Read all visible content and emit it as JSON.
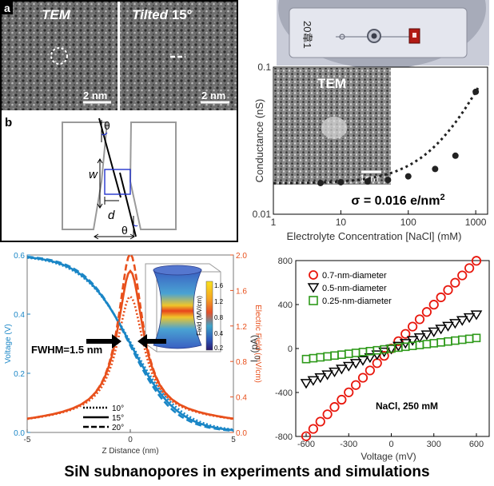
{
  "figure_title": "SiN subnanopores in experiments and simulations",
  "panel_a": {
    "label": "a",
    "left_title": "TEM",
    "right_title_italic": "Tilted",
    "right_title_rest": " 15°",
    "scale_left": "2 nm",
    "scale_right": "2 nm"
  },
  "panel_b": {
    "label": "b",
    "theta_top": "θ",
    "theta_bottom": "θ",
    "w": "w",
    "d": "d"
  },
  "inset_tem": "TEM",
  "inset_scale": "1nm",
  "colors": {
    "voltage": "#1a86c6",
    "efield": "#e8501c",
    "red_marker": "#e8160c",
    "black_marker": "#000000",
    "green_marker": "#2e9a1a"
  },
  "chart_conductance": {
    "type": "scatter",
    "x_scale": "log",
    "y_scale": "log",
    "xlabel": "Electrolyte Concentration [NaCl] (mM)",
    "ylabel": "Conductance (nS)",
    "xlim": [
      1,
      1500
    ],
    "ylim": [
      0.01,
      0.1
    ],
    "xticks": [
      1,
      10,
      100,
      1000
    ],
    "xtick_labels": [
      "1",
      "10",
      "100",
      "1000"
    ],
    "yticks": [
      0.01,
      0.1
    ],
    "ytick_labels": [
      "0.01",
      "0.1"
    ],
    "points": [
      {
        "x": 5,
        "y": 0.0163
      },
      {
        "x": 10,
        "y": 0.0165
      },
      {
        "x": 25,
        "y": 0.0167
      },
      {
        "x": 50,
        "y": 0.0171
      },
      {
        "x": 100,
        "y": 0.0181
      },
      {
        "x": 250,
        "y": 0.0203
      },
      {
        "x": 500,
        "y": 0.025
      },
      {
        "x": 1000,
        "y": 0.068
      }
    ],
    "annotation": "σ = 0.016 e/nm",
    "annotation_sup": "2"
  },
  "chart_profile": {
    "type": "line",
    "xlabel": "Z Distance (nm)",
    "ylabel_left": "Voltage (V)",
    "ylabel_right": "Electric Field (mV/cm)",
    "xlim": [
      -5,
      5
    ],
    "ylim_left": [
      0,
      0.6
    ],
    "ylim_right": [
      0,
      2.0
    ],
    "xticks": [
      -5,
      0,
      5
    ],
    "xtick_labels": [
      "-5",
      "0",
      "5"
    ],
    "yticks_left": [
      0,
      0.2,
      0.4,
      0.6
    ],
    "ytick_labels_left": [
      "0.0",
      "0.2",
      "0.4",
      "0.6"
    ],
    "yticks_right": [
      0,
      0.4,
      0.8,
      1.2,
      1.6,
      2.0
    ],
    "ytick_labels_right": [
      "0.0",
      "0.4",
      "0.8",
      "1.2",
      "1.6",
      "2.0"
    ],
    "legend_labels": [
      "10°",
      "15°",
      "20°"
    ],
    "annotation": "FWHM=1.5 nm",
    "colorbar_label": "Field (MV/cm)",
    "colorbar_ticks": [
      "1.6",
      "1.2",
      "0.8",
      "0.4",
      "0.2"
    ]
  },
  "chart_iv": {
    "type": "scatter",
    "xlabel": "Voltage (mV)",
    "ylabel": "I",
    "ylabel_sub": "0",
    "ylabel_rest": " (pA)",
    "xlim": [
      -600,
      600
    ],
    "ylim": [
      -800,
      800
    ],
    "xticks": [
      -600,
      -300,
      0,
      300,
      600
    ],
    "xtick_labels": [
      "-600",
      "-300",
      "0",
      "300",
      "600"
    ],
    "yticks": [
      -800,
      -400,
      0,
      400,
      800
    ],
    "ytick_labels": [
      "-800",
      "-400",
      "0",
      "400",
      "800"
    ],
    "annotation": "NaCl, 250 mM",
    "series": [
      {
        "name": "0.7-nm-diameter",
        "marker": "circle",
        "slope": 1.33
      },
      {
        "name": "0.5-nm-diameter",
        "marker": "triangle-down",
        "slope": 0.52
      },
      {
        "name": "0.25-nm-diameter",
        "marker": "square",
        "slope": 0.16
      }
    ],
    "x": [
      -600,
      -550,
      -500,
      -450,
      -400,
      -350,
      -300,
      -250,
      -200,
      -150,
      -100,
      -50,
      0,
      50,
      100,
      150,
      200,
      250,
      300,
      350,
      400,
      450,
      500,
      550,
      600
    ]
  }
}
